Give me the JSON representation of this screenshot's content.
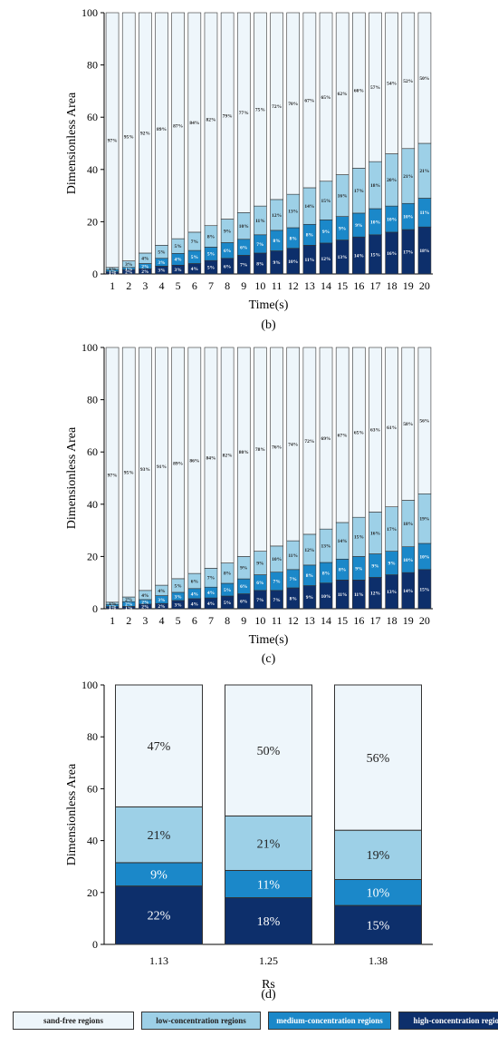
{
  "colors": {
    "sand_free": "#eef6fb",
    "low": "#9dd0e7",
    "medium": "#1b88c9",
    "high": "#0d2f6b",
    "outline": "#333333"
  },
  "legend": [
    {
      "label": "sand-free regions",
      "color": "#eef6fb",
      "text_color": "#222222"
    },
    {
      "label": "low-concentration regions",
      "color": "#9dd0e7",
      "text_color": "#222222"
    },
    {
      "label": "medium-concentration regions",
      "color": "#1b88c9",
      "text_color": "#ffffff"
    },
    {
      "label": "high-concentration regions",
      "color": "#0d2f6b",
      "text_color": "#ffffff"
    }
  ],
  "chart_data": [
    {
      "panel_label": "(b)",
      "type": "bar",
      "stacked": true,
      "xlabel": "Time(s)",
      "ylabel": "Dimensionless Area",
      "ylim": [
        0,
        100
      ],
      "yticks": [
        0,
        20,
        40,
        60,
        80,
        100
      ],
      "categories": [
        "1",
        "2",
        "3",
        "4",
        "5",
        "6",
        "7",
        "8",
        "9",
        "10",
        "11",
        "12",
        "13",
        "14",
        "15",
        "16",
        "17",
        "18",
        "19",
        "20"
      ],
      "stack_heights": [
        2.5,
        5,
        8,
        11,
        13.5,
        16,
        18.5,
        21,
        23.5,
        26,
        28.5,
        30.5,
        33,
        35.5,
        38,
        40.5,
        43,
        46,
        48,
        50
      ],
      "series": [
        {
          "name": "high-concentration regions",
          "values": [
            1,
            2,
            2,
            3,
            3,
            4,
            5,
            6,
            7,
            8,
            9,
            10,
            11,
            12,
            13,
            14,
            15,
            16,
            17,
            18
          ]
        },
        {
          "name": "medium-concentration regions",
          "values": [
            1,
            1,
            2,
            3,
            4,
            5,
            5,
            6,
            6,
            7,
            8,
            8,
            8,
            9,
            9,
            9,
            10,
            10,
            10,
            11
          ]
        },
        {
          "name": "low-concentration regions",
          "values": [
            1,
            3,
            4,
            5,
            5,
            7,
            8,
            9,
            10,
            11,
            12,
            13,
            14,
            15,
            16,
            17,
            18,
            20,
            21,
            21
          ]
        },
        {
          "name": "sand-free regions",
          "values": [
            97,
            95,
            92,
            89,
            87,
            84,
            82,
            79,
            77,
            75,
            72,
            70,
            67,
            65,
            62,
            60,
            57,
            54,
            52,
            50
          ]
        }
      ]
    },
    {
      "panel_label": "(c)",
      "type": "bar",
      "stacked": true,
      "xlabel": "Time(s)",
      "ylabel": "Dimensionless Area",
      "ylim": [
        0,
        100
      ],
      "yticks": [
        0,
        20,
        40,
        60,
        80,
        100
      ],
      "categories": [
        "1",
        "2",
        "3",
        "4",
        "5",
        "6",
        "7",
        "8",
        "9",
        "10",
        "11",
        "12",
        "13",
        "14",
        "15",
        "16",
        "17",
        "18",
        "19",
        "20"
      ],
      "stack_heights": [
        2.5,
        4.5,
        7,
        9,
        11.5,
        13.5,
        15.5,
        17.5,
        20,
        22,
        24,
        26,
        28.5,
        30.5,
        33,
        35,
        37,
        39,
        41.5,
        44
      ],
      "series": [
        {
          "name": "high-concentration regions",
          "values": [
            1,
            1,
            2,
            2,
            3,
            4,
            4,
            5,
            6,
            7,
            7,
            8,
            9,
            10,
            11,
            11,
            12,
            13,
            14,
            15
          ]
        },
        {
          "name": "medium-concentration regions",
          "values": [
            1,
            2,
            2,
            3,
            3,
            4,
            4,
            5,
            6,
            6,
            7,
            7,
            8,
            8,
            8,
            9,
            9,
            9,
            10,
            10
          ]
        },
        {
          "name": "low-concentration regions",
          "values": [
            1,
            2,
            4,
            4,
            5,
            6,
            7,
            8,
            9,
            9,
            10,
            11,
            12,
            13,
            14,
            15,
            16,
            17,
            18,
            19
          ]
        },
        {
          "name": "sand-free regions",
          "values": [
            97,
            95,
            93,
            91,
            89,
            86,
            84,
            82,
            80,
            78,
            76,
            74,
            72,
            69,
            67,
            65,
            63,
            61,
            58,
            56
          ]
        }
      ]
    },
    {
      "panel_label": "(d)",
      "type": "bar",
      "stacked": true,
      "xlabel": "Rs",
      "ylabel": "Dimensionless Area",
      "ylim": [
        0,
        100
      ],
      "yticks": [
        0,
        20,
        40,
        60,
        80,
        100
      ],
      "categories": [
        "1.13",
        "1.25",
        "1.38"
      ],
      "series": [
        {
          "name": "high-concentration regions",
          "values": [
            22,
            18,
            15
          ]
        },
        {
          "name": "medium-concentration regions",
          "values": [
            9,
            11,
            10
          ]
        },
        {
          "name": "low-concentration regions",
          "values": [
            21,
            21,
            19
          ]
        },
        {
          "name": "sand-free regions",
          "values": [
            47,
            50,
            56
          ]
        }
      ],
      "boundaries": [
        [
          22.5,
          31.5,
          53,
          100
        ],
        [
          18,
          28.5,
          49.5,
          100
        ],
        [
          15,
          25,
          44,
          100
        ]
      ]
    }
  ]
}
